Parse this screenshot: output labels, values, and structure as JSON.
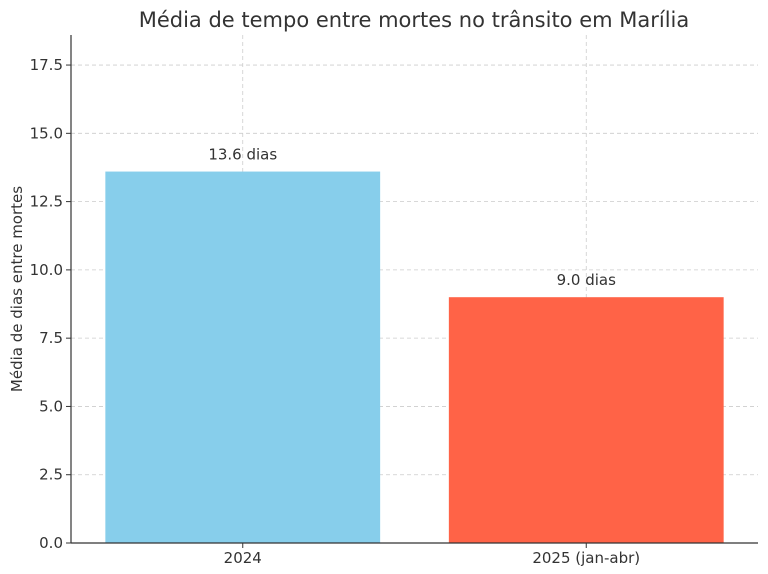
{
  "chart_data": {
    "type": "bar",
    "title": "Média de tempo entre mortes no trânsito em Marília",
    "xlabel": "",
    "ylabel": "Média de dias entre mortes",
    "categories": [
      "2024",
      "2025 (jan-abr)"
    ],
    "values": [
      13.6,
      9.0
    ],
    "value_labels": [
      "13.6 dias",
      "9.0 dias"
    ],
    "colors": [
      "#87CEEB",
      "#FF6347"
    ],
    "ylim": [
      0,
      18.6
    ],
    "yticks": [
      0,
      2.5,
      5,
      7.5,
      10,
      12.5,
      15,
      17.5
    ],
    "ytick_labels": [
      "0.0",
      "2.5",
      "5.0",
      "7.5",
      "10.0",
      "12.5",
      "15.0",
      "17.5"
    ],
    "grid": true
  }
}
